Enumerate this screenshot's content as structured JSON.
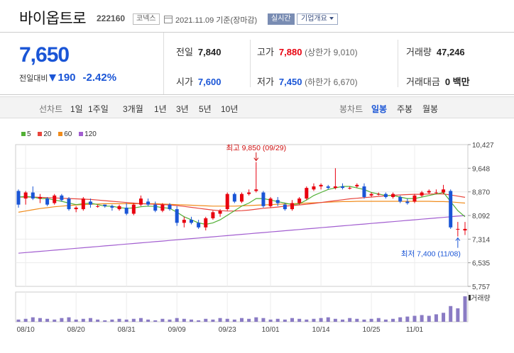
{
  "header": {
    "title": "바이옵트로",
    "code": "222160",
    "market": "코넥스",
    "date": "2021.11.09 기준(장마감)",
    "realtime_label": "실시간",
    "overview_label": "기업개요"
  },
  "quote": {
    "price": "7,650",
    "change_label": "전일대비",
    "change_amount": "190",
    "change_pct": "-2.42%",
    "prev_label": "전일",
    "prev": "7,840",
    "high_label": "고가",
    "high": "7,880",
    "upper_limit_label": "(상한가",
    "upper_limit": "9,010)",
    "volume_label": "거래량",
    "volume": "47,246",
    "open_label": "시가",
    "open": "7,600",
    "low_label": "저가",
    "low": "7,450",
    "lower_limit_label": "(하한가",
    "lower_limit": "6,670)",
    "amount_label": "거래대금",
    "amount": "0 백만"
  },
  "tabs": {
    "line_label": "선차트",
    "periods": [
      "1일",
      "1주일",
      "3개월",
      "1년",
      "3년",
      "5년",
      "10년"
    ],
    "candle_label": "봉차트",
    "candle_periods": [
      "일봉",
      "주봉",
      "월봉"
    ],
    "active_candle": "일봉"
  },
  "colors": {
    "up": "#e8000f",
    "down": "#1a55d6",
    "ma5": "#52b036",
    "ma20": "#e8453c",
    "ma60": "#f08c1c",
    "ma120": "#a25ed0",
    "volume": "#8a7bc4"
  },
  "legend": [
    {
      "label": "5",
      "color": "#52b036"
    },
    {
      "label": "20",
      "color": "#e8453c"
    },
    {
      "label": "60",
      "color": "#f08c1c"
    },
    {
      "label": "120",
      "color": "#a25ed0"
    }
  ],
  "chart_data": {
    "type": "candlestick",
    "y_ticks": [
      "10,427",
      "9,648",
      "8,870",
      "8,092",
      "7,314",
      "6,535",
      "5,757"
    ],
    "ylim": [
      5757,
      10427
    ],
    "x_ticks": [
      "08/10",
      "08/20",
      "08/31",
      "09/09",
      "09/23",
      "10/01",
      "10/14",
      "10/25",
      "11/01"
    ],
    "x_tick_index": [
      1,
      8,
      15,
      22,
      29,
      35,
      42,
      49,
      55
    ],
    "annotations": {
      "high_label": "최고 9,850 (09/29)",
      "high_index": 33,
      "high_value": 9850,
      "low_label": "최저 7,400 (11/08)",
      "low_index": 61,
      "low_value": 7400
    },
    "volume_label": "거래량",
    "candles": [
      [
        8900,
        8950,
        8350,
        8450
      ],
      [
        8650,
        8900,
        8450,
        8850
      ],
      [
        8850,
        9050,
        8600,
        8650
      ],
      [
        8650,
        8800,
        8500,
        8700
      ],
      [
        8650,
        8700,
        8400,
        8450
      ],
      [
        8500,
        8800,
        8450,
        8750
      ],
      [
        8750,
        8800,
        8550,
        8600
      ],
      [
        8650,
        8700,
        8250,
        8300
      ],
      [
        8300,
        8400,
        8200,
        8350
      ],
      [
        8300,
        8700,
        8250,
        8650
      ],
      [
        8550,
        8650,
        8350,
        8450
      ],
      [
        8400,
        8450,
        8350,
        8400
      ],
      [
        8450,
        8450,
        8350,
        8400
      ],
      [
        8400,
        8450,
        8250,
        8350
      ],
      [
        8300,
        8450,
        8250,
        8400
      ],
      [
        8350,
        8500,
        8100,
        8150
      ],
      [
        8150,
        8500,
        8100,
        8450
      ],
      [
        8450,
        8750,
        8400,
        8650
      ],
      [
        8550,
        8650,
        8400,
        8450
      ],
      [
        8450,
        8550,
        8200,
        8250
      ],
      [
        8250,
        8500,
        8200,
        8450
      ],
      [
        8450,
        8500,
        8250,
        8300
      ],
      [
        8300,
        8400,
        7750,
        7850
      ],
      [
        7850,
        8050,
        7700,
        7950
      ],
      [
        7950,
        8050,
        7800,
        7850
      ],
      [
        7850,
        7950,
        7650,
        7700
      ],
      [
        7700,
        8050,
        7600,
        8000
      ],
      [
        8000,
        8250,
        7950,
        8200
      ],
      [
        8150,
        8300,
        8050,
        8250
      ],
      [
        8300,
        8850,
        8250,
        8800
      ],
      [
        8800,
        8850,
        8500,
        8550
      ],
      [
        8550,
        8850,
        8500,
        8800
      ],
      [
        8800,
        8950,
        8750,
        8850
      ],
      [
        8900,
        9850,
        8850,
        8950
      ],
      [
        8850,
        8900,
        8350,
        8400
      ],
      [
        8400,
        8700,
        8350,
        8650
      ],
      [
        8600,
        8700,
        8400,
        8500
      ],
      [
        8450,
        8500,
        8250,
        8300
      ],
      [
        8300,
        8600,
        8250,
        8500
      ],
      [
        8500,
        8700,
        8450,
        8650
      ],
      [
        8650,
        9050,
        8600,
        9000
      ],
      [
        8950,
        9150,
        8900,
        9050
      ],
      [
        9050,
        9150,
        8950,
        9100
      ],
      [
        9050,
        9100,
        8950,
        9000
      ],
      [
        9000,
        9650,
        8950,
        9050
      ],
      [
        9050,
        9150,
        8950,
        9000
      ],
      [
        9000,
        9050,
        8950,
        9000
      ],
      [
        9050,
        9150,
        9000,
        9100
      ],
      [
        9050,
        9150,
        8650,
        8700
      ],
      [
        8750,
        8850,
        8700,
        8800
      ],
      [
        8800,
        8850,
        8750,
        8800
      ],
      [
        8800,
        8850,
        8650,
        8700
      ],
      [
        8700,
        8850,
        8650,
        8800
      ],
      [
        8700,
        8750,
        8500,
        8550
      ],
      [
        8550,
        8650,
        8450,
        8500
      ],
      [
        8550,
        8800,
        8500,
        8750
      ],
      [
        8750,
        8900,
        8700,
        8850
      ],
      [
        8850,
        8950,
        8800,
        8900
      ],
      [
        8850,
        8950,
        8800,
        8850
      ],
      [
        8850,
        9100,
        8800,
        8950
      ],
      [
        8900,
        8950,
        7650,
        7700
      ],
      [
        7650,
        7880,
        7400,
        7650
      ],
      [
        7600,
        7880,
        7450,
        7650
      ]
    ],
    "ma5": [
      8700,
      8720,
      8700,
      8650,
      8650,
      8600,
      8560,
      8500,
      8450,
      8480,
      8500,
      8450,
      8400,
      8400,
      8350,
      8330,
      8340,
      8380,
      8400,
      8390,
      8350,
      8330,
      8200,
      8050,
      7950,
      7850,
      7800,
      7850,
      7950,
      8100,
      8250,
      8400,
      8500,
      8650,
      8650,
      8600,
      8550,
      8500,
      8450,
      8480,
      8600,
      8750,
      8850,
      8950,
      9000,
      9050,
      9050,
      9000,
      8950,
      8850,
      8800,
      8750,
      8750,
      8700,
      8650,
      8650,
      8700,
      8750,
      8800,
      8850,
      8550,
      8250,
      8050
    ],
    "ma20": [
      8700,
      8700,
      8700,
      8690,
      8680,
      8670,
      8660,
      8650,
      8640,
      8630,
      8620,
      8600,
      8580,
      8560,
      8540,
      8520,
      8500,
      8480,
      8470,
      8460,
      8450,
      8440,
      8420,
      8390,
      8360,
      8330,
      8300,
      8270,
      8250,
      8240,
      8240,
      8250,
      8270,
      8300,
      8330,
      8350,
      8370,
      8400,
      8420,
      8440,
      8460,
      8490,
      8520,
      8550,
      8580,
      8610,
      8640,
      8660,
      8680,
      8700,
      8720,
      8740,
      8760,
      8770,
      8780,
      8790,
      8790,
      8800,
      8800,
      8800,
      8770,
      8730,
      8690
    ],
    "ma60": [
      8200,
      8240,
      8280,
      8320,
      8350,
      8380,
      8400,
      8420,
      8440,
      8450,
      8460,
      8470,
      8480,
      8480,
      8480,
      8480,
      8480,
      8480,
      8480,
      8480,
      8470,
      8460,
      8450,
      8440,
      8430,
      8420,
      8410,
      8400,
      8400,
      8400,
      8400,
      8410,
      8420,
      8430,
      8440,
      8450,
      8460,
      8470,
      8480,
      8490,
      8500,
      8510,
      8520,
      8530,
      8540,
      8550,
      8550,
      8560,
      8560,
      8560,
      8560,
      8560,
      8560,
      8560,
      8560,
      8560,
      8560,
      8560,
      8550,
      8550,
      8540,
      8520,
      8500
    ],
    "ma120": [
      6850,
      6870,
      6890,
      6910,
      6930,
      6950,
      6970,
      6990,
      7010,
      7030,
      7050,
      7070,
      7090,
      7110,
      7130,
      7150,
      7170,
      7190,
      7210,
      7230,
      7250,
      7270,
      7290,
      7310,
      7330,
      7350,
      7370,
      7390,
      7410,
      7430,
      7450,
      7470,
      7490,
      7510,
      7530,
      7550,
      7570,
      7590,
      7610,
      7630,
      7650,
      7670,
      7690,
      7710,
      7730,
      7750,
      7770,
      7790,
      7810,
      7830,
      7850,
      7870,
      7890,
      7910,
      7930,
      7950,
      7970,
      7990,
      8010,
      8030,
      8050,
      8070,
      8090
    ],
    "volumes": [
      3,
      4,
      6,
      5,
      4,
      3,
      5,
      6,
      3,
      4,
      5,
      3,
      2,
      3,
      4,
      3,
      4,
      5,
      3,
      2,
      4,
      3,
      5,
      4,
      3,
      2,
      4,
      3,
      5,
      4,
      3,
      5,
      4,
      6,
      5,
      3,
      4,
      3,
      5,
      4,
      3,
      4,
      5,
      6,
      4,
      3,
      5,
      4,
      3,
      4,
      5,
      3,
      4,
      6,
      7,
      8,
      9,
      8,
      10,
      12,
      21,
      18,
      34
    ]
  }
}
